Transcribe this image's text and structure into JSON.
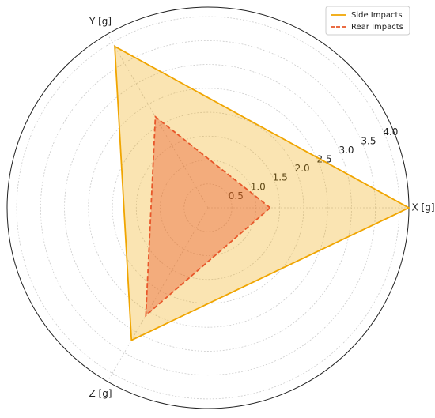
{
  "chart_data": {
    "type": "radar",
    "categories": [
      "X [g]",
      "Y [g]",
      "Z [g]"
    ],
    "series": [
      {
        "name": "Side Impacts",
        "color": "#f0a500",
        "values": [
          4.2,
          3.9,
          3.2
        ]
      },
      {
        "name": "Rear Impacts",
        "color": "#e8572a",
        "values": [
          1.3,
          2.2,
          2.6
        ]
      }
    ],
    "rlim": [
      0,
      4.2
    ],
    "rticks": [
      0.5,
      {
        "value": 1.0,
        "label": "1.0"
      },
      1.5,
      {
        "value": 2.0,
        "label": "2.0"
      },
      2.5,
      {
        "value": 3.0,
        "label": "3.0"
      },
      3.5,
      {
        "value": 4.0,
        "label": "4.0"
      }
    ],
    "grid": true,
    "legend": "upper right"
  }
}
